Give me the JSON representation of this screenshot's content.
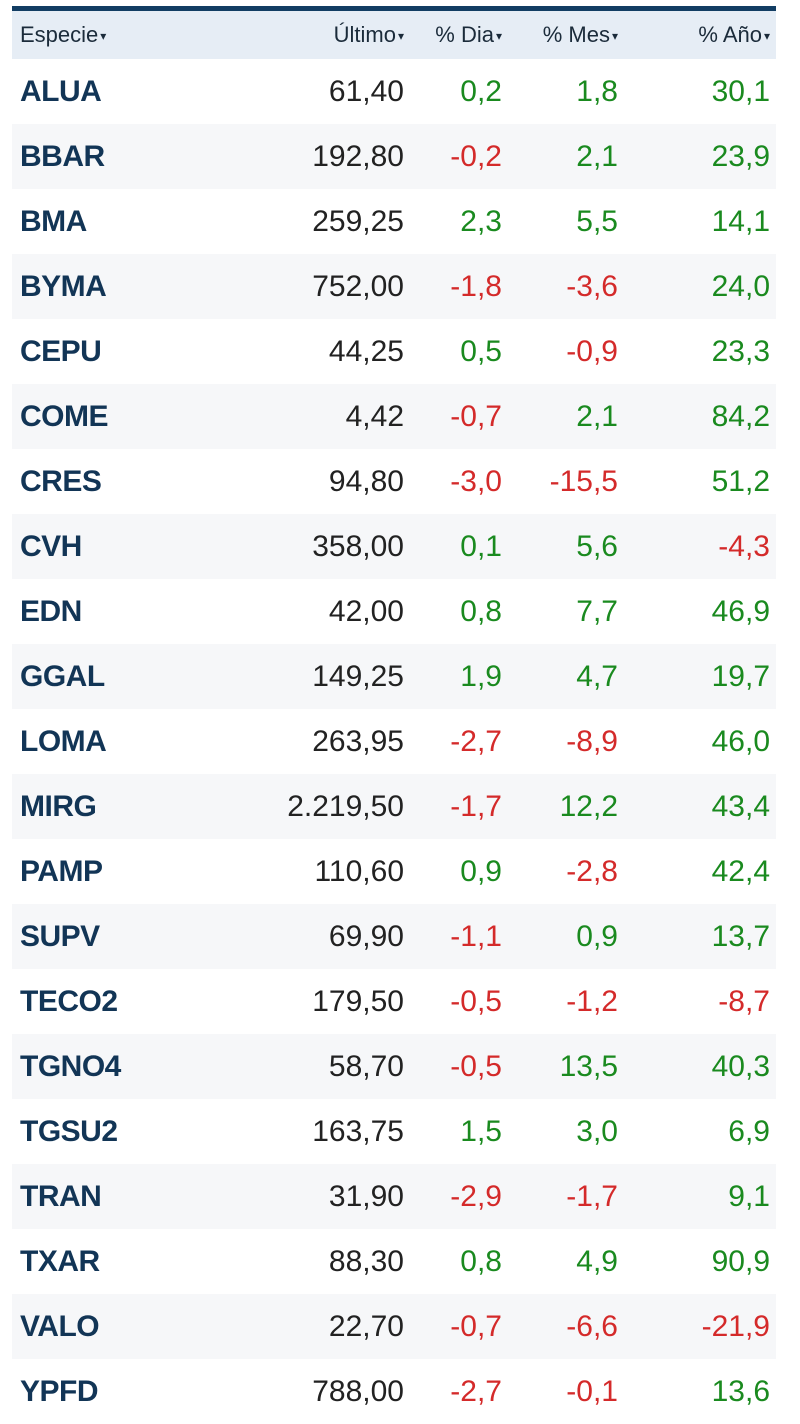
{
  "header": {
    "especie": "Especie",
    "ultimo": "Último",
    "dia": "% Dia",
    "mes": "% Mes",
    "anio": "% Año",
    "caret_icon": "caret-down-icon"
  },
  "colors": {
    "header_bar": "#123d63",
    "header_bg": "#e6edf5",
    "positive": "#1a8a1f",
    "negative": "#d42a2a",
    "ticker": "#123556"
  },
  "rows": [
    {
      "ticker": "ALUA",
      "ultimo": "61,40",
      "dia": "0,2",
      "mes": "1,8",
      "anio": "30,1"
    },
    {
      "ticker": "BBAR",
      "ultimo": "192,80",
      "dia": "-0,2",
      "mes": "2,1",
      "anio": "23,9"
    },
    {
      "ticker": "BMA",
      "ultimo": "259,25",
      "dia": "2,3",
      "mes": "5,5",
      "anio": "14,1"
    },
    {
      "ticker": "BYMA",
      "ultimo": "752,00",
      "dia": "-1,8",
      "mes": "-3,6",
      "anio": "24,0"
    },
    {
      "ticker": "CEPU",
      "ultimo": "44,25",
      "dia": "0,5",
      "mes": "-0,9",
      "anio": "23,3"
    },
    {
      "ticker": "COME",
      "ultimo": "4,42",
      "dia": "-0,7",
      "mes": "2,1",
      "anio": "84,2"
    },
    {
      "ticker": "CRES",
      "ultimo": "94,80",
      "dia": "-3,0",
      "mes": "-15,5",
      "anio": "51,2"
    },
    {
      "ticker": "CVH",
      "ultimo": "358,00",
      "dia": "0,1",
      "mes": "5,6",
      "anio": "-4,3"
    },
    {
      "ticker": "EDN",
      "ultimo": "42,00",
      "dia": "0,8",
      "mes": "7,7",
      "anio": "46,9"
    },
    {
      "ticker": "GGAL",
      "ultimo": "149,25",
      "dia": "1,9",
      "mes": "4,7",
      "anio": "19,7"
    },
    {
      "ticker": "LOMA",
      "ultimo": "263,95",
      "dia": "-2,7",
      "mes": "-8,9",
      "anio": "46,0"
    },
    {
      "ticker": "MIRG",
      "ultimo": "2.219,50",
      "dia": "-1,7",
      "mes": "12,2",
      "anio": "43,4"
    },
    {
      "ticker": "PAMP",
      "ultimo": "110,60",
      "dia": "0,9",
      "mes": "-2,8",
      "anio": "42,4"
    },
    {
      "ticker": "SUPV",
      "ultimo": "69,90",
      "dia": "-1,1",
      "mes": "0,9",
      "anio": "13,7"
    },
    {
      "ticker": "TECO2",
      "ultimo": "179,50",
      "dia": "-0,5",
      "mes": "-1,2",
      "anio": "-8,7"
    },
    {
      "ticker": "TGNO4",
      "ultimo": "58,70",
      "dia": "-0,5",
      "mes": "13,5",
      "anio": "40,3"
    },
    {
      "ticker": "TGSU2",
      "ultimo": "163,75",
      "dia": "1,5",
      "mes": "3,0",
      "anio": "6,9"
    },
    {
      "ticker": "TRAN",
      "ultimo": "31,90",
      "dia": "-2,9",
      "mes": "-1,7",
      "anio": "9,1"
    },
    {
      "ticker": "TXAR",
      "ultimo": "88,30",
      "dia": "0,8",
      "mes": "4,9",
      "anio": "90,9"
    },
    {
      "ticker": "VALO",
      "ultimo": "22,70",
      "dia": "-0,7",
      "mes": "-6,6",
      "anio": "-21,9"
    },
    {
      "ticker": "YPFD",
      "ultimo": "788,00",
      "dia": "-2,7",
      "mes": "-0,1",
      "anio": "13,6"
    }
  ]
}
